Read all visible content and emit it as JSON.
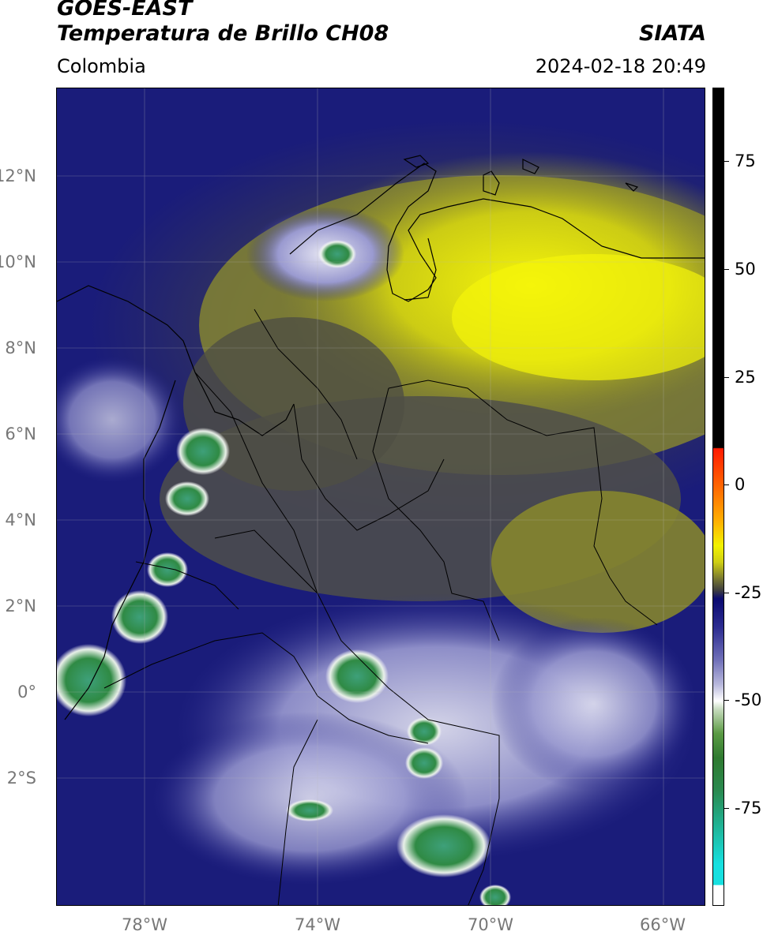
{
  "header": {
    "title_line1": "GOES-EAST",
    "title_line2": "Temperatura de Brillo CH08",
    "brand": "SIATA",
    "region": "Colombia",
    "datetime": "2024-02-18 20:49"
  },
  "map": {
    "lat_labels": [
      "12°N",
      "10°N",
      "8°N",
      "6°N",
      "4°N",
      "2°N",
      "0°",
      "2°S"
    ],
    "lon_labels": [
      "78°W",
      "74°W",
      "70°W",
      "66°W"
    ]
  },
  "colorbar": {
    "ticks": [
      "75",
      "50",
      "25",
      "0",
      "-25",
      "-50",
      "-75"
    ],
    "colors": {
      "black": "#000000",
      "red": "#ff2000",
      "orange": "#ff9a00",
      "yellow": "#f2f200",
      "olive": "#5a5a2a",
      "navy": "#10126e",
      "white": "#ffffff",
      "green": "#2f8a3a",
      "cyan": "#17e0e0"
    }
  }
}
